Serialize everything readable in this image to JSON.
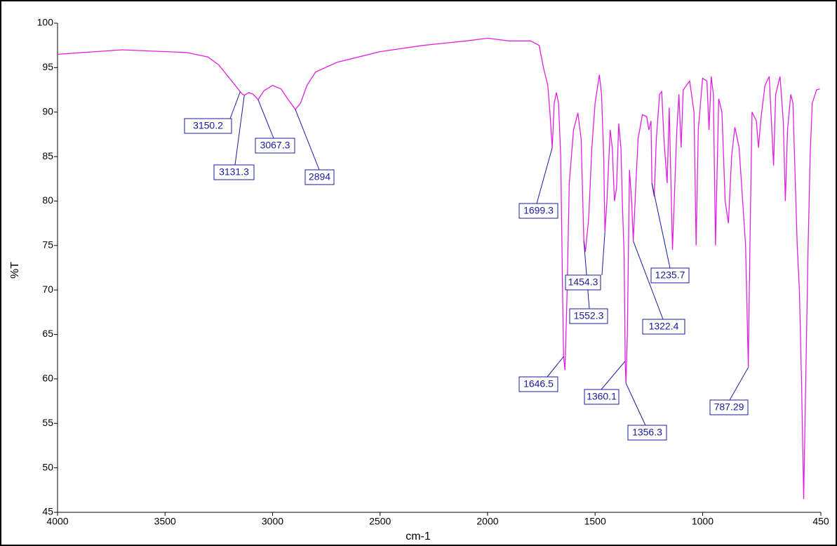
{
  "chart_data": {
    "type": "line",
    "xlabel": "cm-1",
    "ylabel": "%T",
    "color": "#e020e0",
    "xlim": [
      4000,
      450
    ],
    "ylim": [
      45,
      100
    ],
    "xticks": [
      4000,
      3500,
      3000,
      2500,
      2000,
      1500,
      1000,
      450
    ],
    "yticks": [
      45,
      50,
      55,
      60,
      65,
      70,
      75,
      80,
      85,
      90,
      95,
      100
    ],
    "x": [
      4000,
      3700,
      3400,
      3300,
      3250,
      3200,
      3150.2,
      3140,
      3131.3,
      3110,
      3090,
      3067.3,
      3040,
      3000,
      2960,
      2930,
      2894,
      2870,
      2840,
      2800,
      2700,
      2500,
      2300,
      2100,
      2000,
      1900,
      1800,
      1760,
      1740,
      1720,
      1710,
      1699.3,
      1690,
      1680,
      1670,
      1660,
      1650,
      1646.5,
      1640,
      1630,
      1620,
      1600,
      1580,
      1565,
      1552.3,
      1545,
      1530,
      1515,
      1500,
      1480,
      1470,
      1460,
      1454.3,
      1445,
      1430,
      1420,
      1410,
      1400,
      1390,
      1380,
      1372,
      1365,
      1360.1,
      1356.3,
      1350,
      1340,
      1330,
      1322.4,
      1310,
      1300,
      1280,
      1260,
      1250,
      1240,
      1235.7,
      1225,
      1215,
      1200,
      1190,
      1180,
      1165,
      1155,
      1140,
      1120,
      1110,
      1100,
      1090,
      1060,
      1040,
      1030,
      1020,
      1000,
      980,
      970,
      960,
      950,
      940,
      925,
      910,
      895,
      880,
      865,
      850,
      830,
      800,
      787.29,
      780,
      770,
      750,
      740,
      730,
      710,
      690,
      680,
      670,
      660,
      640,
      625,
      615,
      605,
      590,
      580,
      560,
      550,
      540,
      530,
      520,
      510,
      500,
      490,
      470,
      455
    ],
    "values": [
      96.5,
      97.0,
      96.7,
      96.2,
      95.3,
      93.8,
      92.3,
      92.0,
      91.9,
      92.2,
      92.0,
      91.4,
      92.4,
      93.0,
      92.6,
      91.5,
      90.3,
      91.0,
      93.0,
      94.5,
      95.6,
      96.8,
      97.5,
      98.0,
      98.3,
      98.0,
      98.0,
      97.5,
      95,
      93,
      90,
      86,
      91,
      92.2,
      91,
      85,
      68,
      62.5,
      61,
      70,
      82,
      88,
      89.9,
      87,
      75.5,
      74.3,
      78,
      86,
      91,
      94.2,
      92,
      85,
      76.5,
      80,
      88,
      86,
      80,
      81.5,
      88.7,
      86,
      79,
      74,
      62,
      59.5,
      65,
      83.5,
      80,
      75.5,
      82,
      87,
      89.7,
      89.5,
      88,
      89,
      82,
      80.5,
      87,
      92,
      92.3,
      87,
      82,
      90.5,
      74.5,
      88,
      92,
      86,
      92.5,
      93.5,
      90,
      75,
      88,
      93.8,
      93.5,
      88,
      94,
      92,
      75,
      91.5,
      90,
      80,
      77.5,
      85,
      88.3,
      86,
      75,
      61.3,
      75,
      90,
      89,
      86,
      89,
      93,
      94,
      89,
      84,
      92,
      94,
      89,
      80,
      88,
      92,
      91,
      75,
      70,
      60,
      46.5,
      60,
      74,
      85,
      91,
      92.5,
      92.6
    ],
    "annotations": [
      {
        "x": 3150.2,
        "y": 92.3
      },
      {
        "x": 3131.3,
        "y": 91.9
      },
      {
        "x": 3067.3,
        "y": 91.4
      },
      {
        "x": 2894,
        "y": 90.3
      },
      {
        "x": 1699.3,
        "y": 86
      },
      {
        "x": 1646.5,
        "y": 62.5
      },
      {
        "x": 1552.3,
        "y": 75.5
      },
      {
        "x": 1454.3,
        "y": 76.5
      },
      {
        "x": 1360.1,
        "y": 62
      },
      {
        "x": 1356.3,
        "y": 59.5
      },
      {
        "x": 1322.4,
        "y": 75.5
      },
      {
        "x": 1235.7,
        "y": 82
      },
      {
        "x": 787.29,
        "y": 61.3
      }
    ]
  }
}
